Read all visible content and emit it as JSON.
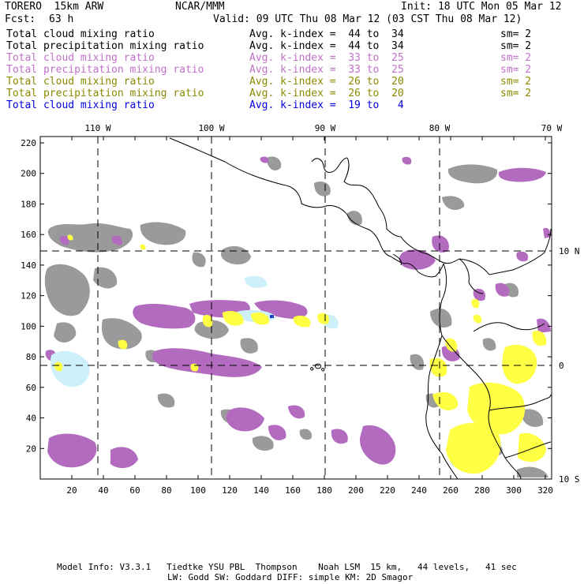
{
  "header": {
    "model": "TORERO  15km ARW",
    "org": "NCAR/MMM",
    "init": "Init: 18 UTC Mon 05 Mar 12",
    "fcst_label": "Fcst:",
    "fcst_value": "63 h",
    "valid": "Valid: 09 UTC Thu 08 Mar 12 (03 CST Thu 08 Mar 12)"
  },
  "legend": [
    {
      "field": "Total cloud mixing ratio",
      "kindex": "Avg. k-index =  44 to  34",
      "sm": "sm= 2",
      "color": "#000000"
    },
    {
      "field": "Total precipitation mixing ratio",
      "kindex": "Avg. k-index =  44 to  34",
      "sm": "sm= 2",
      "color": "#000000"
    },
    {
      "field": "Total cloud mixing ratio",
      "kindex": "Avg. k-index =  33 to  25",
      "sm": "sm= 2",
      "color": "#c071c8"
    },
    {
      "field": "Total precipitation mixing ratio",
      "kindex": "Avg. k-index =  33 to  25",
      "sm": "sm= 2",
      "color": "#c071c8"
    },
    {
      "field": "Total cloud mixing ratio",
      "kindex": "Avg. k-index =  26 to  20",
      "sm": "sm= 2",
      "color": "#8a8a00"
    },
    {
      "field": "Total precipitation mixing ratio",
      "kindex": "Avg. k-index =  26 to  20",
      "sm": "sm= 2",
      "color": "#8a8a00"
    },
    {
      "field": "Total cloud mixing ratio",
      "kindex": "Avg. k-index =  19 to   4",
      "sm": "",
      "color": "#0000dd"
    }
  ],
  "map": {
    "lon_labels": [
      "110 W",
      "100 W",
      "90 W",
      "80 W",
      "70 W"
    ],
    "lat_labels": [
      "10 N",
      "0",
      "10 S"
    ],
    "y_ticks": [
      "220",
      "200",
      "180",
      "160",
      "140",
      "120",
      "100",
      "80",
      "60",
      "40",
      "20"
    ],
    "x_ticks": [
      "20",
      "40",
      "60",
      "80",
      "100",
      "120",
      "140",
      "160",
      "180",
      "200",
      "220",
      "240",
      "260",
      "280",
      "300",
      "320"
    ],
    "colors": {
      "gray": "#9a9a9a",
      "magenta": "#b36bbf",
      "yellow": "#ffff44",
      "cyan": "#cdf0fb",
      "coast": "#000000"
    }
  },
  "footer": {
    "line1": "Model Info: V3.3.1   Tiedtke YSU PBL  Thompson    Noah LSM  15 km,   44 levels,   41 sec",
    "line2": "LW: Godd SW: Goddard DIFF: simple KM: 2D Smagor"
  }
}
